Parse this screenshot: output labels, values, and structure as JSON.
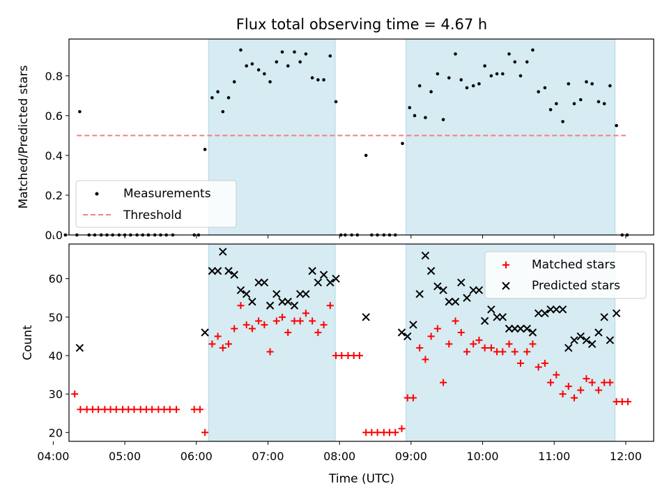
{
  "title": "Flux total observing time = 4.67 h",
  "xlabel": "Time (UTC)",
  "x_ticks": [
    "04:00",
    "05:00",
    "06:00",
    "07:00",
    "08:00",
    "09:00",
    "10:00",
    "11:00",
    "12:00"
  ],
  "colors": {
    "shade": "#add8e6",
    "measurement": "#000000",
    "threshold": "#f08080",
    "matched": "#ff0000",
    "predicted": "#000000"
  },
  "chart_data": [
    {
      "type": "scatter",
      "ylabel": "Matched/Predicted stars",
      "xlim": [
        4.22,
        12.39
      ],
      "ylim": [
        0,
        0.985
      ],
      "y_ticks": [
        "0.0",
        "0.2",
        "0.4",
        "0.6",
        "0.8"
      ],
      "legend_position": "lower-left",
      "observing_windows": [
        [
          6.17,
          7.94
        ],
        [
          8.93,
          11.85
        ]
      ],
      "threshold": {
        "name": "Threshold",
        "value": 0.5,
        "x_range": [
          4.33,
          12.0
        ]
      },
      "series": [
        {
          "name": "Measurements",
          "points": [
            [
              4.17,
              0
            ],
            [
              4.33,
              0
            ],
            [
              4.37,
              0.62
            ],
            [
              4.5,
              0
            ],
            [
              4.58,
              0
            ],
            [
              4.67,
              0
            ],
            [
              4.75,
              0
            ],
            [
              4.83,
              0
            ],
            [
              4.92,
              0
            ],
            [
              5.0,
              0
            ],
            [
              5.08,
              0
            ],
            [
              5.17,
              0
            ],
            [
              5.25,
              0
            ],
            [
              5.33,
              0
            ],
            [
              5.42,
              0
            ],
            [
              5.5,
              0
            ],
            [
              5.58,
              0
            ],
            [
              5.67,
              0
            ],
            [
              5.97,
              0
            ],
            [
              6.03,
              0
            ],
            [
              6.12,
              0.43
            ],
            [
              6.22,
              0.69
            ],
            [
              6.3,
              0.72
            ],
            [
              6.37,
              0.62
            ],
            [
              6.45,
              0.69
            ],
            [
              6.53,
              0.77
            ],
            [
              6.62,
              0.93
            ],
            [
              6.7,
              0.85
            ],
            [
              6.78,
              0.86
            ],
            [
              6.87,
              0.83
            ],
            [
              6.95,
              0.81
            ],
            [
              7.03,
              0.77
            ],
            [
              7.12,
              0.87
            ],
            [
              7.2,
              0.92
            ],
            [
              7.28,
              0.85
            ],
            [
              7.37,
              0.92
            ],
            [
              7.45,
              0.87
            ],
            [
              7.53,
              0.91
            ],
            [
              7.62,
              0.79
            ],
            [
              7.7,
              0.78
            ],
            [
              7.78,
              0.78
            ],
            [
              7.87,
              0.9
            ],
            [
              7.95,
              0.67
            ],
            [
              8.02,
              0
            ],
            [
              8.08,
              0
            ],
            [
              8.17,
              0
            ],
            [
              8.25,
              0
            ],
            [
              8.37,
              0.4
            ],
            [
              8.45,
              0
            ],
            [
              8.53,
              0
            ],
            [
              8.62,
              0
            ],
            [
              8.7,
              0
            ],
            [
              8.78,
              0
            ],
            [
              8.88,
              0.46
            ],
            [
              8.98,
              0.64
            ],
            [
              9.05,
              0.6
            ],
            [
              9.12,
              0.75
            ],
            [
              9.2,
              0.59
            ],
            [
              9.28,
              0.72
            ],
            [
              9.37,
              0.81
            ],
            [
              9.45,
              0.58
            ],
            [
              9.53,
              0.79
            ],
            [
              9.62,
              0.91
            ],
            [
              9.7,
              0.78
            ],
            [
              9.78,
              0.74
            ],
            [
              9.87,
              0.75
            ],
            [
              9.95,
              0.76
            ],
            [
              10.03,
              0.85
            ],
            [
              10.12,
              0.8
            ],
            [
              10.2,
              0.81
            ],
            [
              10.28,
              0.81
            ],
            [
              10.37,
              0.91
            ],
            [
              10.45,
              0.87
            ],
            [
              10.53,
              0.8
            ],
            [
              10.62,
              0.87
            ],
            [
              10.7,
              0.93
            ],
            [
              10.78,
              0.72
            ],
            [
              10.87,
              0.74
            ],
            [
              10.95,
              0.63
            ],
            [
              11.03,
              0.66
            ],
            [
              11.12,
              0.57
            ],
            [
              11.2,
              0.76
            ],
            [
              11.28,
              0.66
            ],
            [
              11.37,
              0.68
            ],
            [
              11.45,
              0.77
            ],
            [
              11.53,
              0.76
            ],
            [
              11.62,
              0.67
            ],
            [
              11.7,
              0.66
            ],
            [
              11.78,
              0.75
            ],
            [
              11.87,
              0.55
            ],
            [
              11.95,
              0
            ],
            [
              12.02,
              0
            ]
          ]
        }
      ]
    },
    {
      "type": "scatter",
      "ylabel": "Count",
      "xlim": [
        4.22,
        12.39
      ],
      "ylim": [
        17.7,
        69.0
      ],
      "y_ticks": [
        "20",
        "30",
        "40",
        "50",
        "60"
      ],
      "legend_position": "upper-right",
      "observing_windows": [
        [
          6.17,
          7.94
        ],
        [
          8.93,
          11.85
        ]
      ],
      "series": [
        {
          "name": "Matched stars",
          "marker": "+",
          "points": [
            [
              4.3,
              30
            ],
            [
              4.38,
              26
            ],
            [
              4.47,
              26
            ],
            [
              4.55,
              26
            ],
            [
              4.63,
              26
            ],
            [
              4.72,
              26
            ],
            [
              4.8,
              26
            ],
            [
              4.88,
              26
            ],
            [
              4.97,
              26
            ],
            [
              5.05,
              26
            ],
            [
              5.13,
              26
            ],
            [
              5.22,
              26
            ],
            [
              5.3,
              26
            ],
            [
              5.38,
              26
            ],
            [
              5.47,
              26
            ],
            [
              5.55,
              26
            ],
            [
              5.63,
              26
            ],
            [
              5.72,
              26
            ],
            [
              5.97,
              26
            ],
            [
              6.05,
              26
            ],
            [
              6.12,
              20
            ],
            [
              6.22,
              43
            ],
            [
              6.3,
              45
            ],
            [
              6.37,
              42
            ],
            [
              6.45,
              43
            ],
            [
              6.53,
              47
            ],
            [
              6.62,
              53
            ],
            [
              6.7,
              48
            ],
            [
              6.78,
              47
            ],
            [
              6.87,
              49
            ],
            [
              6.95,
              48
            ],
            [
              7.03,
              41
            ],
            [
              7.12,
              49
            ],
            [
              7.2,
              50
            ],
            [
              7.28,
              46
            ],
            [
              7.37,
              49
            ],
            [
              7.45,
              49
            ],
            [
              7.53,
              51
            ],
            [
              7.62,
              49
            ],
            [
              7.7,
              46
            ],
            [
              7.78,
              48
            ],
            [
              7.87,
              53
            ],
            [
              7.95,
              40
            ],
            [
              8.03,
              40
            ],
            [
              8.12,
              40
            ],
            [
              8.2,
              40
            ],
            [
              8.28,
              40
            ],
            [
              8.37,
              20
            ],
            [
              8.45,
              20
            ],
            [
              8.53,
              20
            ],
            [
              8.62,
              20
            ],
            [
              8.7,
              20
            ],
            [
              8.78,
              20
            ],
            [
              8.87,
              21
            ],
            [
              8.95,
              29
            ],
            [
              9.03,
              29
            ],
            [
              9.12,
              42
            ],
            [
              9.2,
              39
            ],
            [
              9.28,
              45
            ],
            [
              9.37,
              47
            ],
            [
              9.45,
              33
            ],
            [
              9.53,
              43
            ],
            [
              9.62,
              49
            ],
            [
              9.7,
              46
            ],
            [
              9.78,
              41
            ],
            [
              9.87,
              43
            ],
            [
              9.95,
              44
            ],
            [
              10.03,
              42
            ],
            [
              10.12,
              42
            ],
            [
              10.2,
              41
            ],
            [
              10.28,
              41
            ],
            [
              10.37,
              43
            ],
            [
              10.45,
              41
            ],
            [
              10.53,
              38
            ],
            [
              10.62,
              41
            ],
            [
              10.7,
              43
            ],
            [
              10.78,
              37
            ],
            [
              10.87,
              38
            ],
            [
              10.95,
              33
            ],
            [
              11.03,
              35
            ],
            [
              11.12,
              30
            ],
            [
              11.2,
              32
            ],
            [
              11.28,
              29
            ],
            [
              11.37,
              31
            ],
            [
              11.45,
              34
            ],
            [
              11.53,
              33
            ],
            [
              11.62,
              31
            ],
            [
              11.7,
              33
            ],
            [
              11.78,
              33
            ],
            [
              11.87,
              28
            ],
            [
              11.95,
              28
            ],
            [
              12.03,
              28
            ]
          ]
        },
        {
          "name": "Predicted stars",
          "marker": "x",
          "points": [
            [
              4.37,
              42
            ],
            [
              6.12,
              46
            ],
            [
              6.22,
              62
            ],
            [
              6.3,
              62
            ],
            [
              6.37,
              67
            ],
            [
              6.45,
              62
            ],
            [
              6.53,
              61
            ],
            [
              6.62,
              57
            ],
            [
              6.7,
              56
            ],
            [
              6.78,
              54
            ],
            [
              6.87,
              59
            ],
            [
              6.95,
              59
            ],
            [
              7.03,
              53
            ],
            [
              7.12,
              56
            ],
            [
              7.2,
              54
            ],
            [
              7.28,
              54
            ],
            [
              7.37,
              53
            ],
            [
              7.45,
              56
            ],
            [
              7.53,
              56
            ],
            [
              7.62,
              62
            ],
            [
              7.7,
              59
            ],
            [
              7.78,
              61
            ],
            [
              7.87,
              59
            ],
            [
              7.95,
              60
            ],
            [
              8.37,
              50
            ],
            [
              8.87,
              46
            ],
            [
              8.95,
              45
            ],
            [
              9.03,
              48
            ],
            [
              9.12,
              56
            ],
            [
              9.2,
              66
            ],
            [
              9.28,
              62
            ],
            [
              9.37,
              58
            ],
            [
              9.45,
              57
            ],
            [
              9.53,
              54
            ],
            [
              9.62,
              54
            ],
            [
              9.7,
              59
            ],
            [
              9.78,
              55
            ],
            [
              9.87,
              57
            ],
            [
              9.95,
              57
            ],
            [
              10.03,
              49
            ],
            [
              10.12,
              52
            ],
            [
              10.2,
              50
            ],
            [
              10.28,
              50
            ],
            [
              10.37,
              47
            ],
            [
              10.45,
              47
            ],
            [
              10.53,
              47
            ],
            [
              10.62,
              47
            ],
            [
              10.7,
              46
            ],
            [
              10.78,
              51
            ],
            [
              10.87,
              51
            ],
            [
              10.95,
              52
            ],
            [
              11.03,
              52
            ],
            [
              11.12,
              52
            ],
            [
              11.2,
              42
            ],
            [
              11.28,
              44
            ],
            [
              11.37,
              45
            ],
            [
              11.45,
              44
            ],
            [
              11.53,
              43
            ],
            [
              11.62,
              46
            ],
            [
              11.7,
              50
            ],
            [
              11.78,
              44
            ],
            [
              11.87,
              51
            ]
          ]
        }
      ]
    }
  ]
}
